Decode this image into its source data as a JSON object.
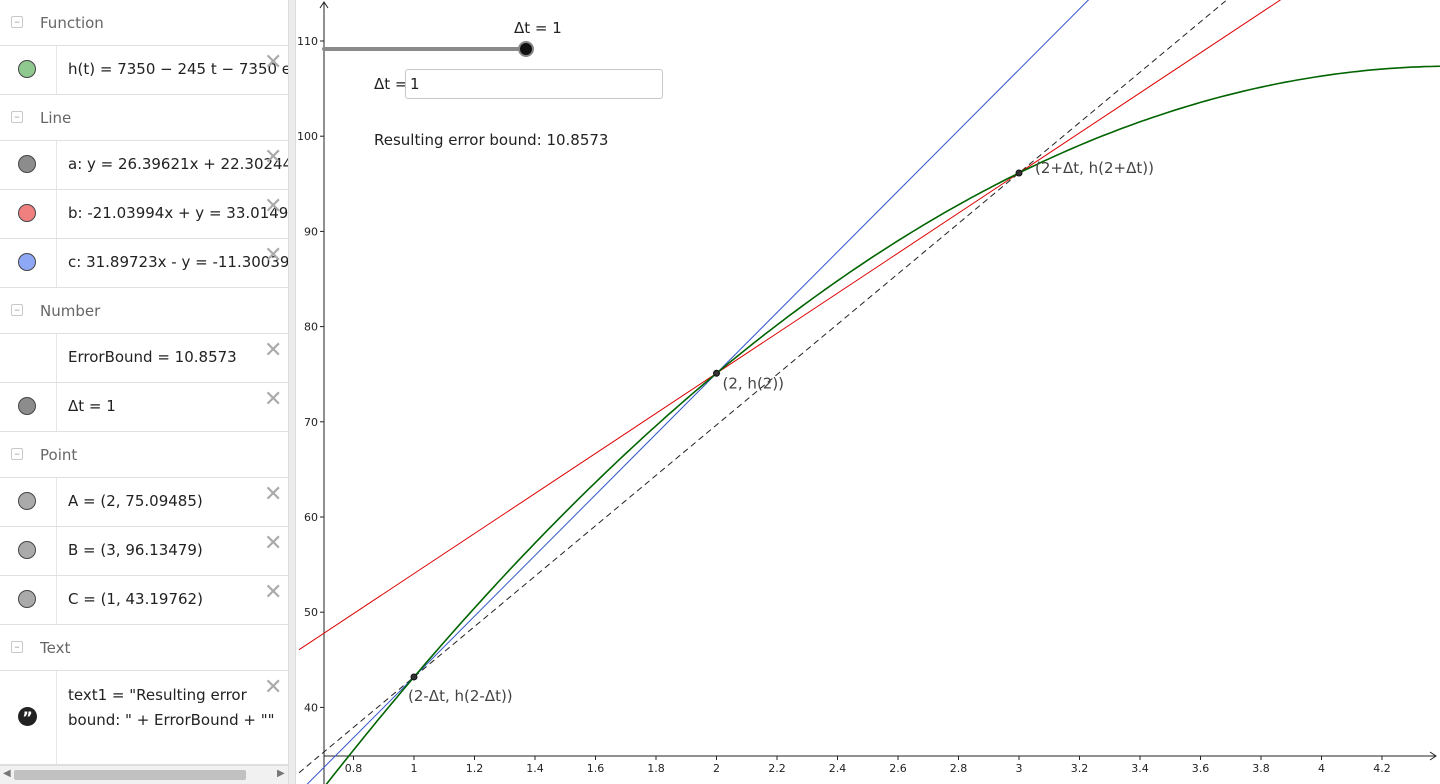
{
  "algebra": {
    "groups": [
      {
        "title": "Function",
        "items": [
          {
            "color": "#8fc98f",
            "text": "h(t)  =  7350 − 245 t − 7350 e"
          }
        ]
      },
      {
        "title": "Line",
        "items": [
          {
            "color": "#8c8c8c",
            "text": "a: y  =  26.39621x  +  22.30244"
          },
          {
            "color": "#f08080",
            "text": "b: -21.03994x  +  y  =  33.0149"
          },
          {
            "color": "#8fa8f5",
            "text": "c: 31.89723x  -  y  =  -11.30039"
          }
        ]
      },
      {
        "title": "Number",
        "items": [
          {
            "color": "",
            "text": "ErrorBound  =  10.8573"
          },
          {
            "color": "#8c8c8c",
            "text": "Δt  =  1"
          }
        ]
      },
      {
        "title": "Point",
        "items": [
          {
            "color": "#aaaaaa",
            "text": "A  =  (2,  75.09485)"
          },
          {
            "color": "#aaaaaa",
            "text": "B  =  (3,  96.13479)"
          },
          {
            "color": "#aaaaaa",
            "text": "C  =  (1,  43.19762)"
          }
        ]
      },
      {
        "title": "Text",
        "items": [
          {
            "color": "",
            "text": "text1  =  \"Resulting error bound: \"  +  ErrorBound  +  \"\""
          }
        ]
      }
    ],
    "delete_icon": "close-icon",
    "collapse_icon": "minus-icon",
    "text_icon": "quote-icon"
  },
  "graphics": {
    "slider_label": "Δt = 1",
    "slider_value": 1,
    "input_label": "Δt =",
    "input_value": "1",
    "error_text": "Resulting error bound: 10.8573",
    "point_labels": [
      "(2, h(2))",
      "(2+Δt, h(2+Δt))",
      "(2-Δt, h(2-Δt))"
    ],
    "x_ticks": [
      "0.8",
      "1",
      "1.2",
      "1.4",
      "1.6",
      "1.8",
      "2",
      "2.2",
      "2.4",
      "2.6",
      "2.8",
      "3",
      "3.2",
      "3.4",
      "3.6",
      "3.8",
      "4",
      "4.2"
    ],
    "y_ticks": [
      "40",
      "50",
      "60",
      "70",
      "80",
      "90",
      "100",
      "110"
    ],
    "colors": {
      "function": "#006400",
      "line_a": "#222222",
      "line_b": "#dd0000",
      "line_c": "#3355cc"
    }
  }
}
